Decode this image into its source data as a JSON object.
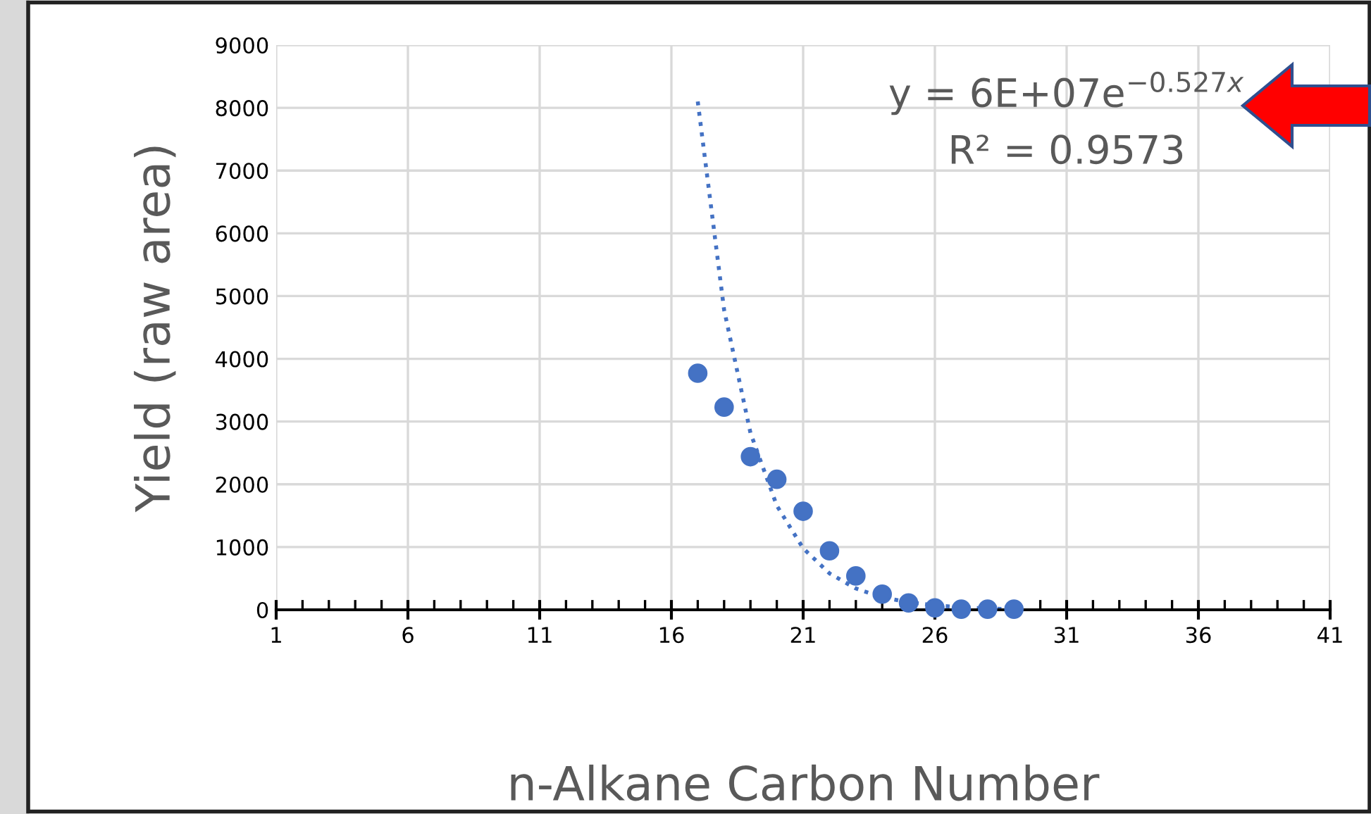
{
  "chart_data": {
    "type": "scatter",
    "xlabel": "n-Alkane Carbon Number",
    "ylabel": "Yield (raw area)",
    "xlim": [
      1,
      41
    ],
    "ylim": [
      0,
      9000
    ],
    "xticks": [
      1,
      6,
      11,
      16,
      21,
      26,
      31,
      36,
      41,
      {
        "value": 2,
        "label": null
      },
      {
        "value": 3,
        "label": null
      },
      {
        "value": 4,
        "label": null
      },
      {
        "value": 5,
        "label": null
      },
      {
        "value": 7,
        "label": null
      },
      {
        "value": 8,
        "label": null
      },
      {
        "value": 9,
        "label": null
      },
      {
        "value": 10,
        "label": null
      },
      {
        "value": 12,
        "label": null
      },
      {
        "value": 13,
        "label": null
      },
      {
        "value": 14,
        "label": null
      },
      {
        "value": 15,
        "label": null
      },
      {
        "value": 17,
        "label": null
      },
      {
        "value": 18,
        "label": null
      },
      {
        "value": 19,
        "label": null
      },
      {
        "value": 20,
        "label": null
      },
      {
        "value": 22,
        "label": null
      },
      {
        "value": 23,
        "label": null
      },
      {
        "value": 24,
        "label": null
      },
      {
        "value": 25,
        "label": null
      },
      {
        "value": 27,
        "label": null
      },
      {
        "value": 28,
        "label": null
      },
      {
        "value": 29,
        "label": null
      },
      {
        "value": 30,
        "label": null
      },
      {
        "value": 32,
        "label": null
      },
      {
        "value": 33,
        "label": null
      },
      {
        "value": 34,
        "label": null
      },
      {
        "value": 35,
        "label": null
      },
      {
        "value": 37,
        "label": null
      },
      {
        "value": 38,
        "label": null
      },
      {
        "value": 39,
        "label": null
      },
      {
        "value": 40,
        "label": null
      }
    ],
    "yticks": [
      0,
      1000,
      2000,
      3000,
      4000,
      5000,
      6000,
      7000,
      8000,
      9000
    ],
    "grid": true,
    "legend": false,
    "series": [
      {
        "color": "#4472c4",
        "marker": "circle",
        "x": [
          17,
          18,
          19,
          20,
          21,
          22,
          23,
          24,
          25,
          26,
          27,
          28,
          29
        ],
        "values": [
          3770,
          3230,
          2440,
          2080,
          1570,
          940,
          540,
          250,
          110,
          30,
          10,
          10,
          10
        ]
      },
      {
        "type": "line",
        "color": "#4472c4",
        "line_style": "dotted",
        "marker": "none",
        "x": [
          17,
          18,
          19,
          20,
          21,
          22,
          23,
          24,
          25,
          26,
          27,
          28,
          29
        ],
        "values": [
          8100,
          4780,
          2820,
          1660,
          980,
          580,
          340,
          200,
          120,
          70,
          40,
          20,
          10
        ]
      }
    ],
    "annotations": [
      "y = 6E+07e$^{−0.527x}$",
      "R² = 0.9573"
    ]
  }
}
